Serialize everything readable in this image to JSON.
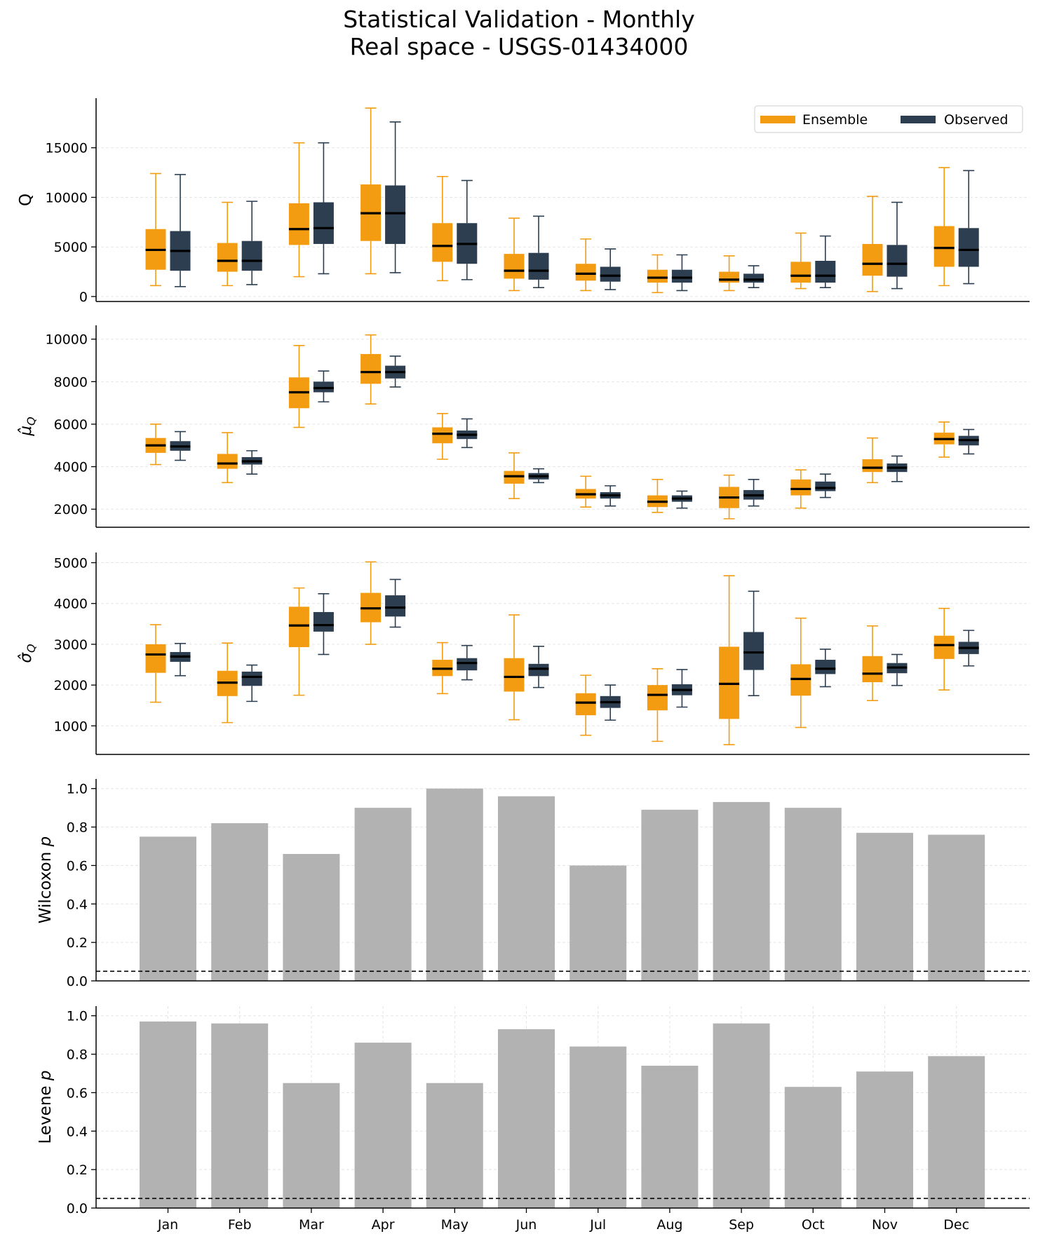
{
  "figure": {
    "title_line1": "Statistical Validation - Monthly",
    "title_line2": "Real space - USGS-01434000"
  },
  "colors": {
    "ensemble": "#F39C12",
    "observed": "#2C3E50",
    "bar": "#B2B2B2",
    "median": "#000000",
    "grid": "#E5E5E5"
  },
  "legend": {
    "ensemble_label": "Ensemble",
    "observed_label": "Observed",
    "placement": "top-right"
  },
  "chart_data": [
    {
      "type": "boxplot",
      "ylabel": "Q",
      "ylim": [
        -500,
        20000
      ],
      "yticks": [
        0,
        5000,
        10000,
        15000
      ],
      "grid": "y",
      "categories": [
        "Jan",
        "Feb",
        "Mar",
        "Apr",
        "May",
        "Jun",
        "Jul",
        "Aug",
        "Sep",
        "Oct",
        "Nov",
        "Dec"
      ],
      "series": [
        {
          "name": "Ensemble",
          "boxes": [
            {
              "whislo": 1100,
              "q1": 2700,
              "med": 4700,
              "q3": 6800,
              "whishi": 12400
            },
            {
              "whislo": 1100,
              "q1": 2500,
              "med": 3600,
              "q3": 5400,
              "whishi": 9500
            },
            {
              "whislo": 2000,
              "q1": 5200,
              "med": 6800,
              "q3": 9400,
              "whishi": 15500
            },
            {
              "whislo": 2300,
              "q1": 5600,
              "med": 8400,
              "q3": 11300,
              "whishi": 19000
            },
            {
              "whislo": 1600,
              "q1": 3500,
              "med": 5100,
              "q3": 7400,
              "whishi": 12100
            },
            {
              "whislo": 600,
              "q1": 1800,
              "med": 2600,
              "q3": 4300,
              "whishi": 7900
            },
            {
              "whislo": 600,
              "q1": 1600,
              "med": 2300,
              "q3": 3300,
              "whishi": 5800
            },
            {
              "whislo": 400,
              "q1": 1400,
              "med": 1900,
              "q3": 2700,
              "whishi": 4200
            },
            {
              "whislo": 600,
              "q1": 1400,
              "med": 1700,
              "q3": 2500,
              "whishi": 4100
            },
            {
              "whislo": 800,
              "q1": 1400,
              "med": 2100,
              "q3": 3500,
              "whishi": 6400
            },
            {
              "whislo": 500,
              "q1": 2100,
              "med": 3300,
              "q3": 5300,
              "whishi": 10100
            },
            {
              "whislo": 1100,
              "q1": 3000,
              "med": 4900,
              "q3": 7100,
              "whishi": 13000
            }
          ]
        },
        {
          "name": "Observed",
          "boxes": [
            {
              "whislo": 1000,
              "q1": 2600,
              "med": 4600,
              "q3": 6600,
              "whishi": 12300
            },
            {
              "whislo": 1200,
              "q1": 2600,
              "med": 3600,
              "q3": 5600,
              "whishi": 9600
            },
            {
              "whislo": 2300,
              "q1": 5300,
              "med": 6900,
              "q3": 9500,
              "whishi": 15500
            },
            {
              "whislo": 2400,
              "q1": 5300,
              "med": 8400,
              "q3": 11200,
              "whishi": 17600
            },
            {
              "whislo": 1700,
              "q1": 3300,
              "med": 5300,
              "q3": 7400,
              "whishi": 11700
            },
            {
              "whislo": 900,
              "q1": 1700,
              "med": 2600,
              "q3": 4400,
              "whishi": 8100
            },
            {
              "whislo": 700,
              "q1": 1500,
              "med": 2100,
              "q3": 3000,
              "whishi": 4800
            },
            {
              "whislo": 600,
              "q1": 1400,
              "med": 1900,
              "q3": 2700,
              "whishi": 4200
            },
            {
              "whislo": 900,
              "q1": 1400,
              "med": 1700,
              "q3": 2300,
              "whishi": 3100
            },
            {
              "whislo": 900,
              "q1": 1400,
              "med": 2100,
              "q3": 3600,
              "whishi": 6100
            },
            {
              "whislo": 800,
              "q1": 2000,
              "med": 3300,
              "q3": 5200,
              "whishi": 9500
            },
            {
              "whislo": 1300,
              "q1": 3000,
              "med": 4700,
              "q3": 6900,
              "whishi": 12700
            }
          ]
        }
      ]
    },
    {
      "type": "boxplot",
      "ylabel": "μ̂",
      "ylabel_sub": "Q",
      "ylim": [
        1150,
        10650
      ],
      "yticks": [
        2000,
        4000,
        6000,
        8000,
        10000
      ],
      "grid": "y",
      "categories": [
        "Jan",
        "Feb",
        "Mar",
        "Apr",
        "May",
        "Jun",
        "Jul",
        "Aug",
        "Sep",
        "Oct",
        "Nov",
        "Dec"
      ],
      "series": [
        {
          "name": "Ensemble",
          "boxes": [
            {
              "whislo": 4100,
              "q1": 4650,
              "med": 5000,
              "q3": 5350,
              "whishi": 6000
            },
            {
              "whislo": 3250,
              "q1": 3900,
              "med": 4150,
              "q3": 4600,
              "whishi": 5600
            },
            {
              "whislo": 5850,
              "q1": 6750,
              "med": 7500,
              "q3": 8200,
              "whishi": 9700
            },
            {
              "whislo": 6950,
              "q1": 7900,
              "med": 8450,
              "q3": 9300,
              "whishi": 10200
            },
            {
              "whislo": 4350,
              "q1": 5100,
              "med": 5550,
              "q3": 5850,
              "whishi": 6500
            },
            {
              "whislo": 2500,
              "q1": 3200,
              "med": 3550,
              "q3": 3800,
              "whishi": 4650
            },
            {
              "whislo": 2100,
              "q1": 2500,
              "med": 2700,
              "q3": 2950,
              "whishi": 3550
            },
            {
              "whislo": 1850,
              "q1": 2100,
              "med": 2350,
              "q3": 2650,
              "whishi": 3400
            },
            {
              "whislo": 1550,
              "q1": 2050,
              "med": 2550,
              "q3": 3050,
              "whishi": 3600
            },
            {
              "whislo": 2050,
              "q1": 2650,
              "med": 2950,
              "q3": 3400,
              "whishi": 3850
            },
            {
              "whislo": 3250,
              "q1": 3750,
              "med": 3950,
              "q3": 4350,
              "whishi": 5350
            },
            {
              "whislo": 4450,
              "q1": 5050,
              "med": 5300,
              "q3": 5600,
              "whishi": 6100
            }
          ]
        },
        {
          "name": "Observed",
          "boxes": [
            {
              "whislo": 4300,
              "q1": 4750,
              "med": 4950,
              "q3": 5200,
              "whishi": 5650
            },
            {
              "whislo": 3650,
              "q1": 4100,
              "med": 4250,
              "q3": 4450,
              "whishi": 4750
            },
            {
              "whislo": 7050,
              "q1": 7500,
              "med": 7700,
              "q3": 8000,
              "whishi": 8500
            },
            {
              "whislo": 7750,
              "q1": 8150,
              "med": 8450,
              "q3": 8750,
              "whishi": 9200
            },
            {
              "whislo": 4900,
              "q1": 5300,
              "med": 5500,
              "q3": 5700,
              "whishi": 6250
            },
            {
              "whislo": 3250,
              "q1": 3400,
              "med": 3550,
              "q3": 3700,
              "whishi": 3900
            },
            {
              "whislo": 2150,
              "q1": 2500,
              "med": 2650,
              "q3": 2800,
              "whishi": 3100
            },
            {
              "whislo": 2050,
              "q1": 2350,
              "med": 2500,
              "q3": 2650,
              "whishi": 2850
            },
            {
              "whislo": 2150,
              "q1": 2450,
              "med": 2650,
              "q3": 2900,
              "whishi": 3400
            },
            {
              "whislo": 2550,
              "q1": 2850,
              "med": 3000,
              "q3": 3300,
              "whishi": 3650
            },
            {
              "whislo": 3300,
              "q1": 3750,
              "med": 3950,
              "q3": 4150,
              "whishi": 4500
            },
            {
              "whislo": 4600,
              "q1": 5000,
              "med": 5250,
              "q3": 5450,
              "whishi": 5750
            }
          ]
        }
      ]
    },
    {
      "type": "boxplot",
      "ylabel": "σ̂",
      "ylabel_sub": "Q",
      "ylim": [
        300,
        5250
      ],
      "yticks": [
        1000,
        2000,
        3000,
        4000,
        5000
      ],
      "grid": "y",
      "categories": [
        "Jan",
        "Feb",
        "Mar",
        "Apr",
        "May",
        "Jun",
        "Jul",
        "Aug",
        "Sep",
        "Oct",
        "Nov",
        "Dec"
      ],
      "series": [
        {
          "name": "Ensemble",
          "boxes": [
            {
              "whislo": 1580,
              "q1": 2300,
              "med": 2750,
              "q3": 3000,
              "whishi": 3480
            },
            {
              "whislo": 1080,
              "q1": 1730,
              "med": 2060,
              "q3": 2350,
              "whishi": 3030
            },
            {
              "whislo": 1750,
              "q1": 2930,
              "med": 3460,
              "q3": 3920,
              "whishi": 4380
            },
            {
              "whislo": 3000,
              "q1": 3540,
              "med": 3880,
              "q3": 4260,
              "whishi": 5020
            },
            {
              "whislo": 1790,
              "q1": 2220,
              "med": 2400,
              "q3": 2620,
              "whishi": 3040
            },
            {
              "whislo": 1150,
              "q1": 1840,
              "med": 2200,
              "q3": 2660,
              "whishi": 3720
            },
            {
              "whislo": 770,
              "q1": 1260,
              "med": 1570,
              "q3": 1800,
              "whishi": 2240
            },
            {
              "whislo": 620,
              "q1": 1380,
              "med": 1760,
              "q3": 2000,
              "whishi": 2400
            },
            {
              "whislo": 540,
              "q1": 1170,
              "med": 2030,
              "q3": 2940,
              "whishi": 4680
            },
            {
              "whislo": 960,
              "q1": 1740,
              "med": 2150,
              "q3": 2510,
              "whishi": 3640
            },
            {
              "whislo": 1620,
              "q1": 2070,
              "med": 2280,
              "q3": 2710,
              "whishi": 3450
            },
            {
              "whislo": 1880,
              "q1": 2640,
              "med": 2980,
              "q3": 3210,
              "whishi": 3880
            }
          ]
        },
        {
          "name": "Observed",
          "boxes": [
            {
              "whislo": 2230,
              "q1": 2570,
              "med": 2700,
              "q3": 2810,
              "whishi": 3020
            },
            {
              "whislo": 1600,
              "q1": 1980,
              "med": 2200,
              "q3": 2330,
              "whishi": 2490
            },
            {
              "whislo": 2750,
              "q1": 3310,
              "med": 3470,
              "q3": 3790,
              "whishi": 4240
            },
            {
              "whislo": 3420,
              "q1": 3680,
              "med": 3900,
              "q3": 4200,
              "whishi": 4590
            },
            {
              "whislo": 2130,
              "q1": 2360,
              "med": 2540,
              "q3": 2660,
              "whishi": 2970
            },
            {
              "whislo": 1940,
              "q1": 2220,
              "med": 2400,
              "q3": 2520,
              "whishi": 2950
            },
            {
              "whislo": 1140,
              "q1": 1440,
              "med": 1580,
              "q3": 1730,
              "whishi": 2000
            },
            {
              "whislo": 1460,
              "q1": 1750,
              "med": 1880,
              "q3": 2020,
              "whishi": 2380
            },
            {
              "whislo": 1740,
              "q1": 2370,
              "med": 2800,
              "q3": 3300,
              "whishi": 4300
            },
            {
              "whislo": 1960,
              "q1": 2270,
              "med": 2400,
              "q3": 2620,
              "whishi": 2880
            },
            {
              "whislo": 1990,
              "q1": 2290,
              "med": 2430,
              "q3": 2540,
              "whishi": 2750
            },
            {
              "whislo": 2470,
              "q1": 2760,
              "med": 2910,
              "q3": 3060,
              "whishi": 3340
            }
          ]
        }
      ]
    },
    {
      "type": "bar",
      "ylabel": "Wilcoxon ",
      "ylabel_italic": "p",
      "ylim": [
        0,
        1.05
      ],
      "yticks": [
        "0.0",
        "0.2",
        "0.4",
        "0.6",
        "0.8",
        "1.0"
      ],
      "grid": "y",
      "threshold": 0.05,
      "categories": [
        "Jan",
        "Feb",
        "Mar",
        "Apr",
        "May",
        "Jun",
        "Jul",
        "Aug",
        "Sep",
        "Oct",
        "Nov",
        "Dec"
      ],
      "values": [
        0.75,
        0.82,
        0.66,
        0.9,
        1.0,
        0.96,
        0.6,
        0.89,
        0.93,
        0.9,
        0.77,
        0.76
      ]
    },
    {
      "type": "bar",
      "ylabel": "Levene ",
      "ylabel_italic": "p",
      "ylim": [
        0,
        1.05
      ],
      "yticks": [
        "0.0",
        "0.2",
        "0.4",
        "0.6",
        "0.8",
        "1.0"
      ],
      "grid": "both",
      "threshold": 0.05,
      "categories": [
        "Jan",
        "Feb",
        "Mar",
        "Apr",
        "May",
        "Jun",
        "Jul",
        "Aug",
        "Sep",
        "Oct",
        "Nov",
        "Dec"
      ],
      "values": [
        0.97,
        0.96,
        0.65,
        0.86,
        0.65,
        0.93,
        0.84,
        0.74,
        0.96,
        0.63,
        0.71,
        0.79
      ]
    }
  ]
}
